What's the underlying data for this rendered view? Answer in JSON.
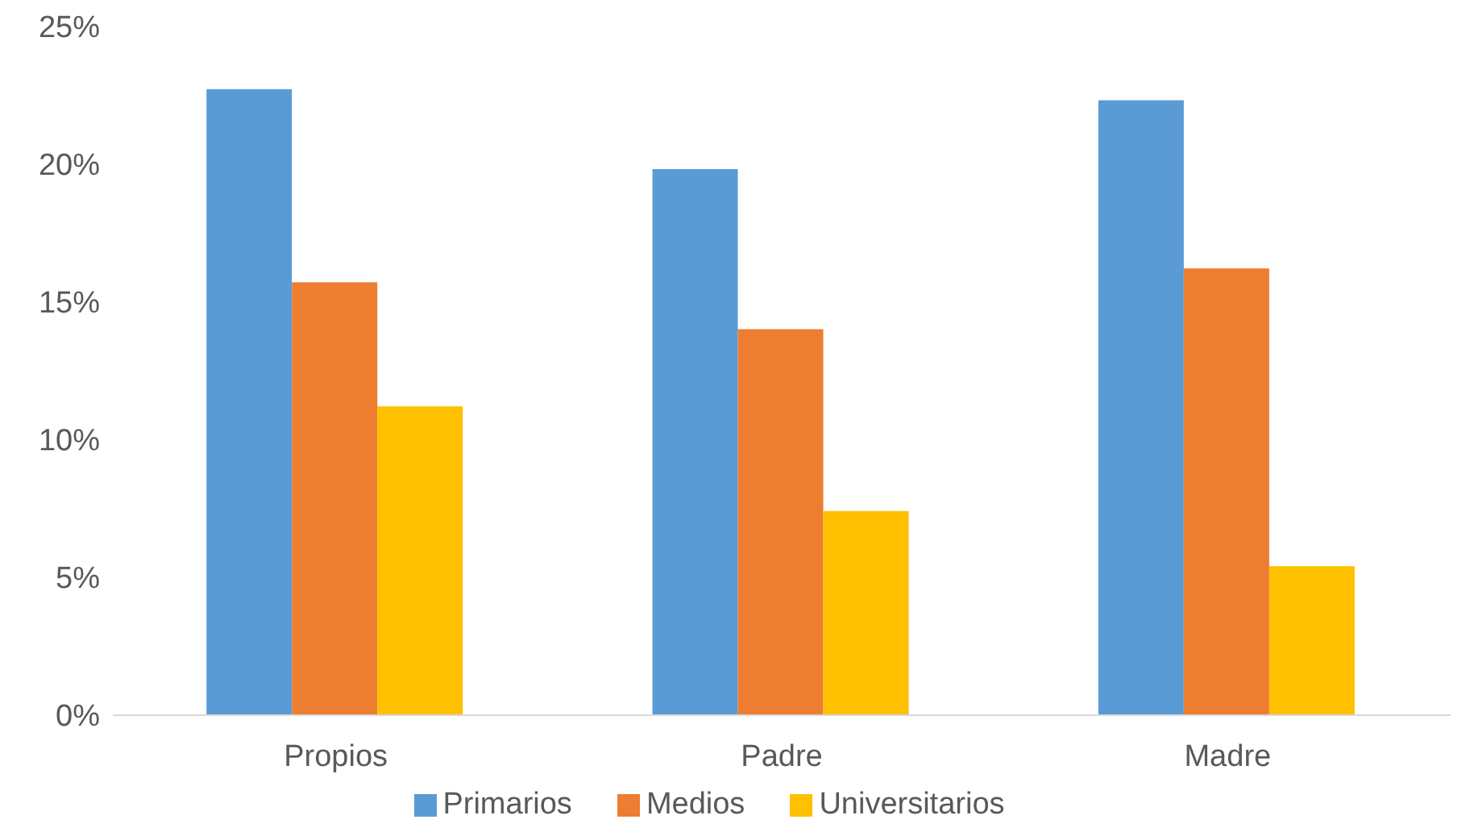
{
  "chart_data": {
    "type": "bar",
    "categories": [
      "Propios",
      "Padre",
      "Madre"
    ],
    "series": [
      {
        "name": "Primarios",
        "color": "#5b9bd5",
        "values": [
          22.7,
          19.8,
          22.3
        ]
      },
      {
        "name": "Medios",
        "color": "#ed7d31",
        "values": [
          15.7,
          14.0,
          16.2
        ]
      },
      {
        "name": "Universitarios",
        "color": "#ffc000",
        "values": [
          11.2,
          7.4,
          5.4
        ]
      }
    ],
    "ylim": [
      0,
      25
    ],
    "yticks": [
      {
        "value": 0,
        "label": "0%"
      },
      {
        "value": 5,
        "label": "5%"
      },
      {
        "value": 10,
        "label": "10%"
      },
      {
        "value": 15,
        "label": "15%"
      },
      {
        "value": 20,
        "label": "20%"
      },
      {
        "value": 25,
        "label": "25%"
      }
    ],
    "grid": false,
    "legend": "bottom"
  }
}
